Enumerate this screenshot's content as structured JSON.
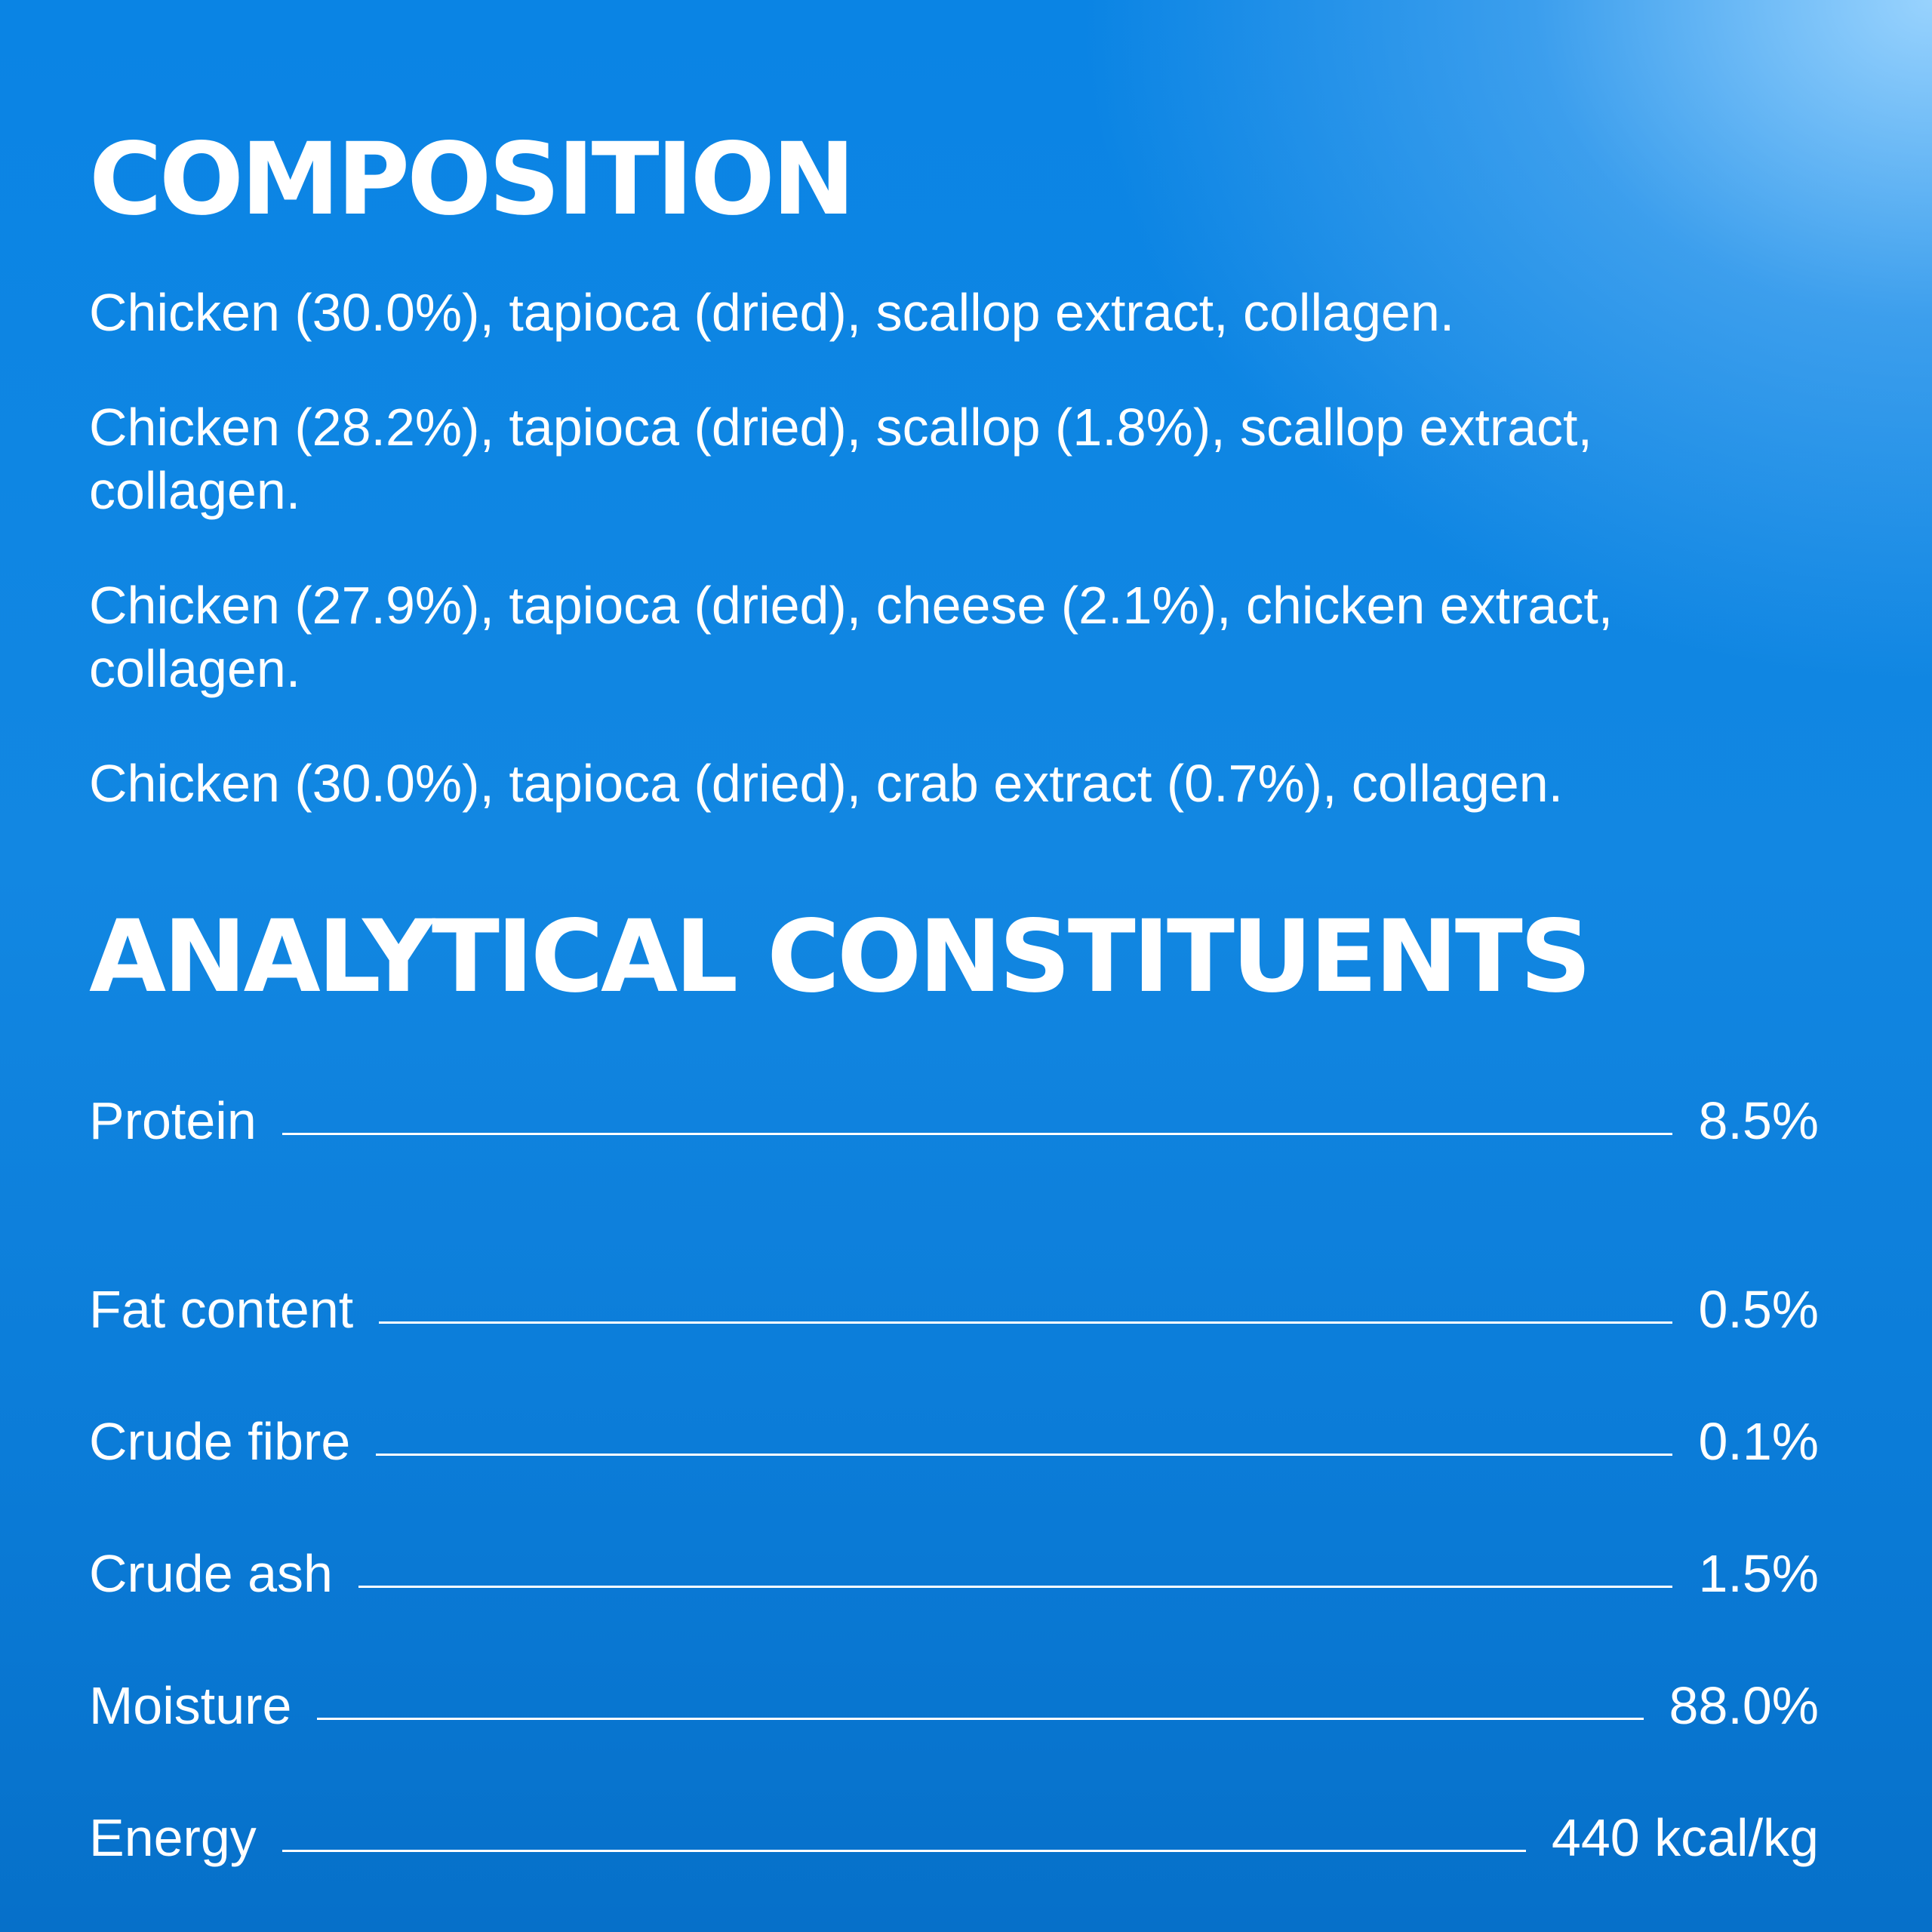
{
  "composition": {
    "heading": "COMPOSITION",
    "items": [
      "Chicken (30.0%), tapioca (dried), scallop extract, collagen.",
      "Chicken (28.2%), tapioca (dried), scallop (1.8%), scallop extract, collagen.",
      "Chicken (27.9%), tapioca (dried), cheese (2.1%), chicken extract, collagen.",
      "Chicken (30.0%), tapioca (dried), crab extract (0.7%), collagen."
    ]
  },
  "analytical": {
    "heading": "ANALYTICAL CONSTITUENTS",
    "rows": [
      {
        "label": "Protein",
        "value": "8.5%"
      },
      {
        "label": "Fat content",
        "value": "0.5%"
      },
      {
        "label": "Crude fibre",
        "value": "0.1%"
      },
      {
        "label": "Crude ash",
        "value": "1.5%"
      },
      {
        "label": "Moisture",
        "value": "88.0%"
      },
      {
        "label": "Energy",
        "value": "440 kcal/kg"
      }
    ]
  },
  "colors": {
    "background_top": "#0a84e4",
    "background_highlight": "#a0d7ff",
    "text": "#ffffff"
  }
}
